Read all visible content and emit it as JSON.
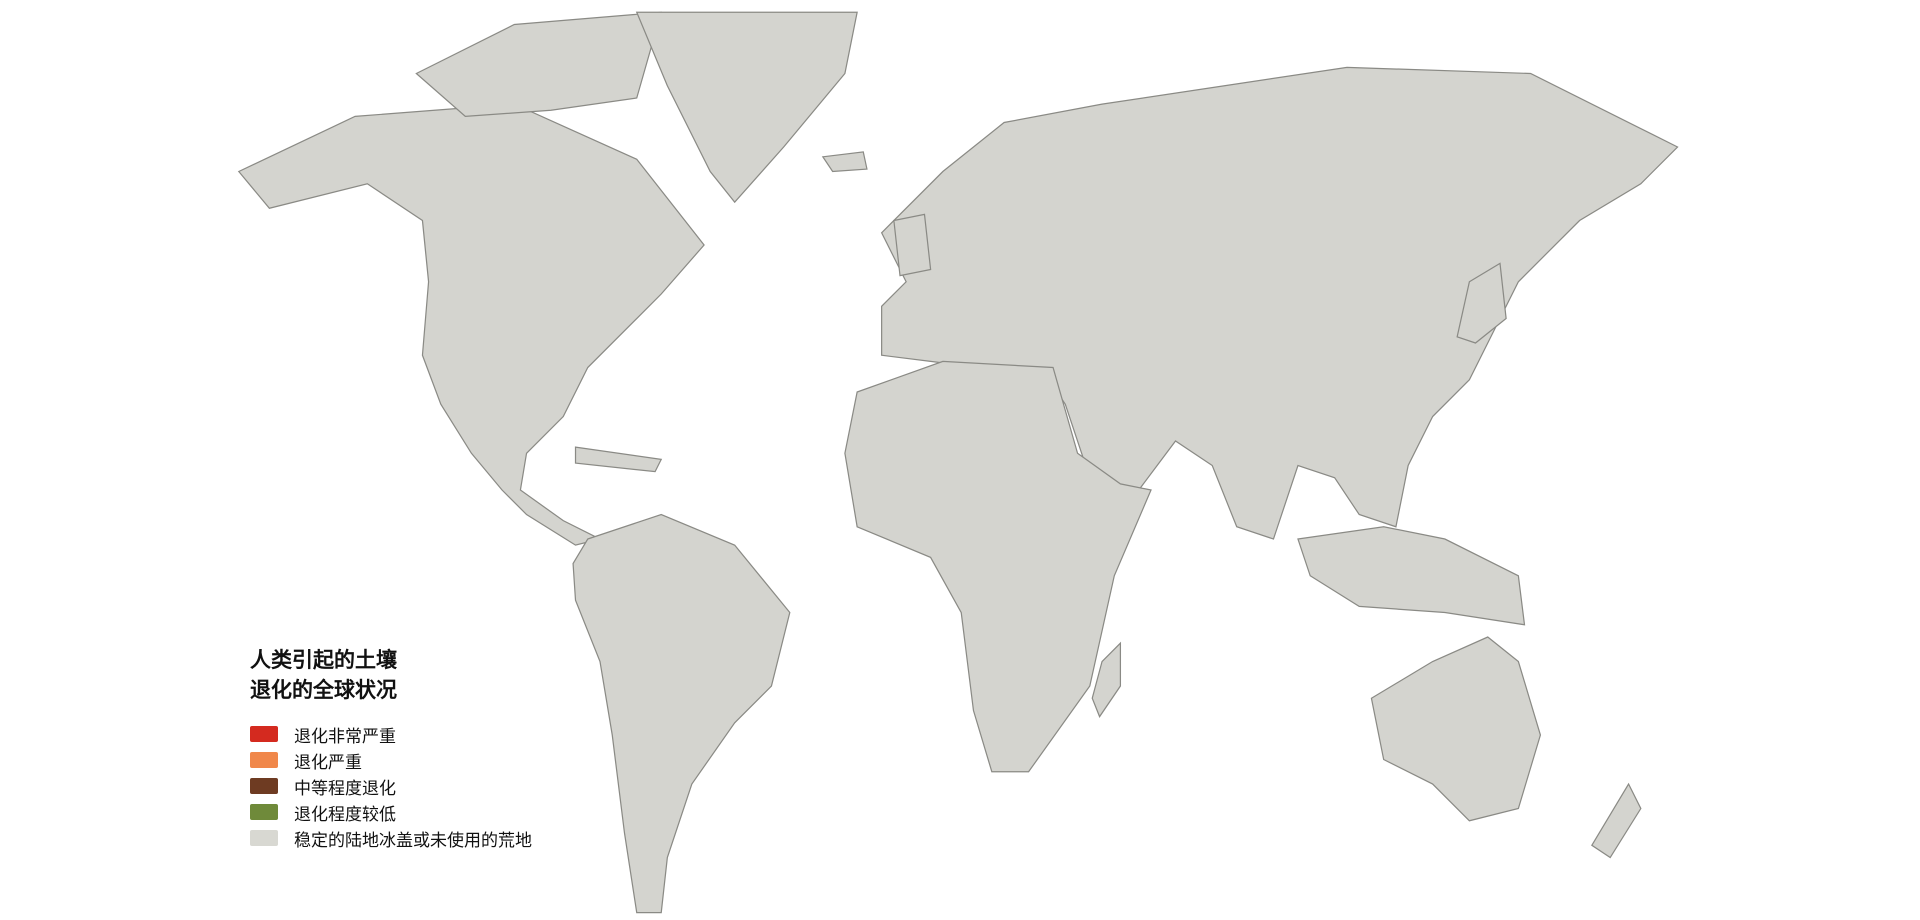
{
  "legend": {
    "title_line1": "人类引起的土壤",
    "title_line2": "退化的全球状况",
    "items": [
      {
        "label": "退化非常严重",
        "color": "#d42a1f"
      },
      {
        "label": "退化严重",
        "color": "#f0874a"
      },
      {
        "label": "中等程度退化",
        "color": "#6e3b22"
      },
      {
        "label": "退化程度较低",
        "color": "#6f8a3a"
      },
      {
        "label": "稳定的陆地冰盖或未使用的荒地",
        "color": "#d8d8d2"
      }
    ]
  },
  "colors": {
    "land_base": "#d4d4cf",
    "background": "#ffffff",
    "border": "#8a8a85"
  }
}
